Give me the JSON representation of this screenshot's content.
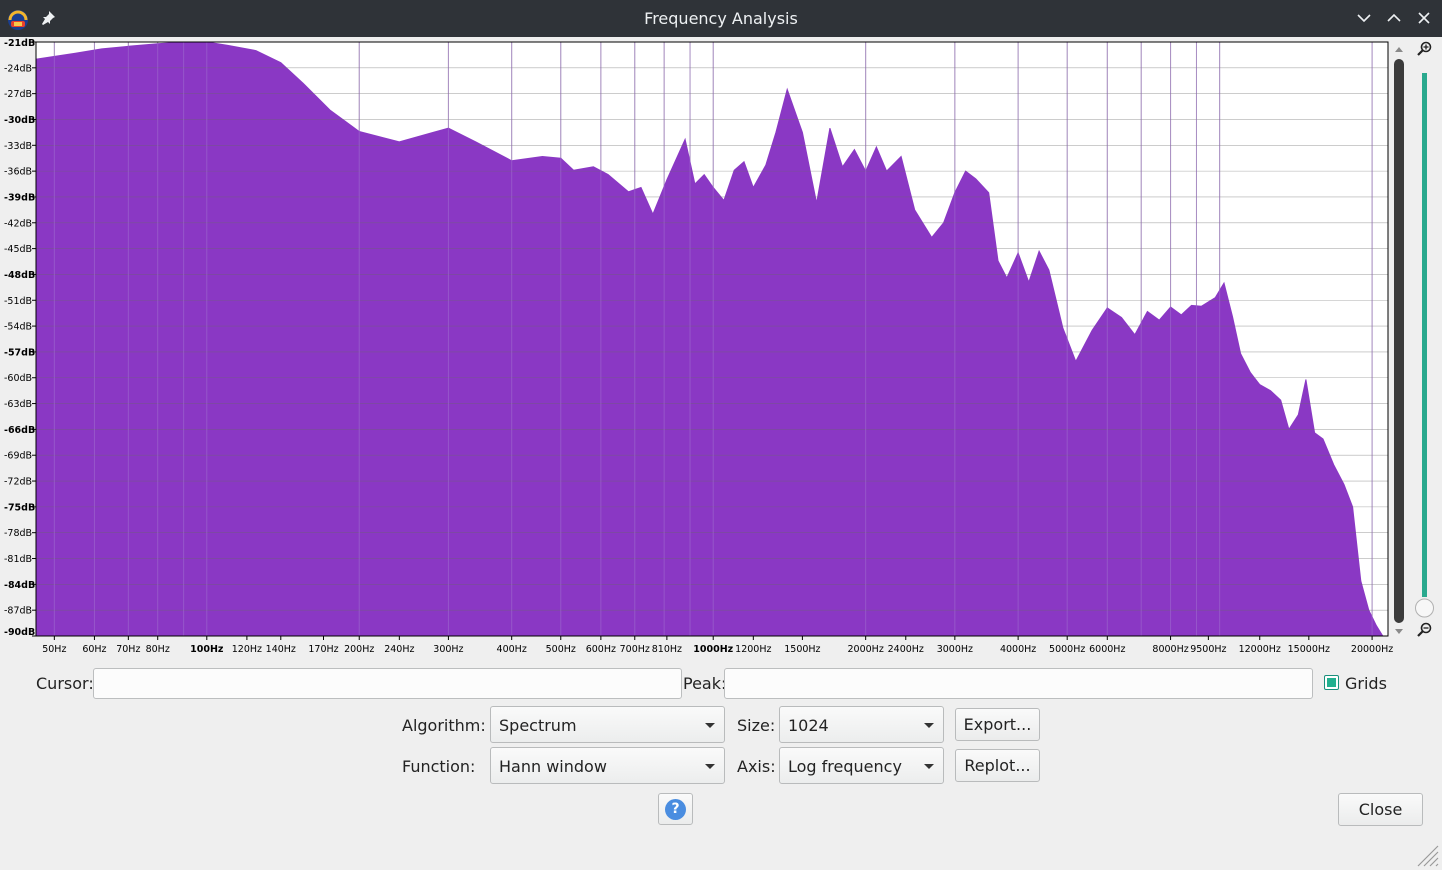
{
  "window": {
    "title": "Frequency Analysis",
    "app_icon": "audacity-icon",
    "titlebar_buttons": [
      "minimize-icon",
      "maximize-icon",
      "close-icon"
    ]
  },
  "chart_data": {
    "type": "area",
    "title": "",
    "xlabel": "",
    "ylabel": "",
    "x_scale": "log",
    "xlim": [
      46,
      21500
    ],
    "ylim": [
      -90,
      -21
    ],
    "grid": true,
    "fill_color": "#8a38c4",
    "y_ticks": [
      "-21dB",
      "-24dB",
      "-27dB",
      "-30dB",
      "-33dB",
      "-36dB",
      "-39dB",
      "-42dB",
      "-45dB",
      "-48dB",
      "-51dB",
      "-54dB",
      "-57dB",
      "-60dB",
      "-63dB",
      "-66dB",
      "-69dB",
      "-72dB",
      "-75dB",
      "-78dB",
      "-81dB",
      "-84dB",
      "-87dB",
      "-90dB"
    ],
    "x_ticks": [
      "50Hz",
      "60Hz",
      "70Hz",
      "80Hz",
      "100Hz",
      "120Hz",
      "140Hz",
      "170Hz",
      "200Hz",
      "240Hz",
      "300Hz",
      "400Hz",
      "500Hz",
      "600Hz",
      "700Hz",
      "810Hz",
      "1000Hz",
      "1200Hz",
      "1500Hz",
      "2000Hz",
      "2400Hz",
      "3000Hz",
      "4000Hz",
      "5000Hz",
      "6000Hz",
      "8000Hz",
      "9500Hz",
      "12000Hz",
      "15000Hz",
      "20000Hz"
    ],
    "series": [
      {
        "x": [
          46,
          55,
          62,
          70,
          80,
          90,
          100,
          110,
          125,
          140,
          155,
          175,
          200,
          240,
          280,
          300,
          340,
          400,
          460,
          500,
          530,
          580,
          620,
          680,
          720,
          760,
          810,
          880,
          920,
          960,
          1000,
          1050,
          1100,
          1150,
          1200,
          1270,
          1330,
          1400,
          1500,
          1600,
          1700,
          1800,
          1900,
          2000,
          2100,
          2200,
          2350,
          2500,
          2700,
          2850,
          3000,
          3150,
          3300,
          3500,
          3650,
          3800,
          4000,
          4200,
          4400,
          4600,
          4900,
          5200,
          5600,
          6000,
          6400,
          6800,
          7200,
          7600,
          8000,
          8400,
          8800,
          9200,
          9800,
          10200,
          10600,
          11000,
          11500,
          12000,
          12600,
          13200,
          13700,
          14300,
          14800,
          15400,
          16000,
          16800,
          17600,
          18300,
          19000,
          19700,
          20400,
          21000,
          21500
        ],
        "y": [
          -23.0,
          -22.3,
          -21.8,
          -21.5,
          -21.2,
          -21.0,
          -21.0,
          -21.4,
          -22.0,
          -23.4,
          -25.8,
          -28.9,
          -31.4,
          -32.6,
          -31.5,
          -31.0,
          -32.6,
          -34.8,
          -34.3,
          -34.5,
          -35.9,
          -35.5,
          -36.4,
          -38.4,
          -37.9,
          -41.0,
          -37.0,
          -32.3,
          -37.5,
          -36.4,
          -37.9,
          -39.4,
          -35.9,
          -34.9,
          -37.9,
          -35.3,
          -31.5,
          -26.5,
          -31.5,
          -39.7,
          -31.0,
          -35.5,
          -33.5,
          -36.0,
          -33.2,
          -36.0,
          -34.3,
          -40.5,
          -43.7,
          -42.0,
          -38.5,
          -36.0,
          -36.9,
          -38.5,
          -46.4,
          -48.4,
          -45.5,
          -48.9,
          -45.3,
          -47.5,
          -54.2,
          -58.1,
          -54.5,
          -51.9,
          -53.0,
          -55.0,
          -52.3,
          -53.3,
          -51.8,
          -52.7,
          -51.6,
          -51.7,
          -50.7,
          -49.0,
          -52.9,
          -57.2,
          -59.4,
          -60.8,
          -61.5,
          -62.6,
          -66.0,
          -64.3,
          -60.2,
          -66.4,
          -67.1,
          -70.1,
          -72.4,
          -75.0,
          -83.6,
          -87.0,
          -88.8,
          -90.0,
          -90.0
        ]
      }
    ]
  },
  "controls": {
    "cursor_label": "Cursor:",
    "cursor_value": "",
    "peak_label": "Peak:",
    "peak_value": "",
    "grids_label": "Grids",
    "grids_checked": true,
    "algorithm_label": "Algorithm:",
    "algorithm_value": "Spectrum",
    "size_label": "Size:",
    "size_value": "1024",
    "function_label": "Function:",
    "function_value": "Hann window",
    "axis_label": "Axis:",
    "axis_value": "Log frequency",
    "export_label": "Export...",
    "replot_label": "Replot...",
    "help_label": "?",
    "close_label": "Close"
  },
  "zoom": {
    "zoom_in_icon": "zoom-in-icon",
    "zoom_out_icon": "zoom-out-icon"
  }
}
